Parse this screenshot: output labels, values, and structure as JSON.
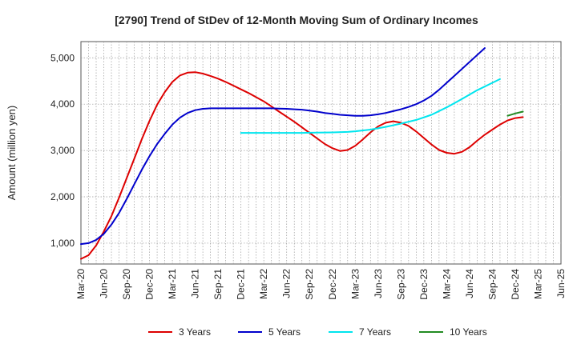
{
  "chart_data": {
    "type": "line",
    "title": "[2790]  Trend of StDev of 12-Month Moving Sum of Ordinary Incomes",
    "xlabel": "",
    "ylabel": "Amount (million yen)",
    "x_ticks": [
      "Mar-20",
      "Jun-20",
      "Sep-20",
      "Dec-20",
      "Mar-21",
      "Jun-21",
      "Sep-21",
      "Dec-21",
      "Mar-22",
      "Jun-22",
      "Sep-22",
      "Dec-22",
      "Mar-23",
      "Jun-23",
      "Sep-23",
      "Dec-23",
      "Mar-24",
      "Jun-24",
      "Sep-24",
      "Dec-24",
      "Mar-25",
      "Jun-25"
    ],
    "y_ticks": [
      1000,
      2000,
      3000,
      4000,
      5000
    ],
    "y_tick_labels": [
      "1,000",
      "2,000",
      "3,000",
      "4,000",
      "5,000"
    ],
    "ylim": [
      550,
      5350
    ],
    "grid": true,
    "legend_position": "bottom",
    "series": [
      {
        "name": "3 Years",
        "color": "#dd0000",
        "points": [
          [
            0,
            660
          ],
          [
            0.333,
            740
          ],
          [
            0.667,
            950
          ],
          [
            1,
            1250
          ],
          [
            1.333,
            1580
          ],
          [
            1.667,
            1980
          ],
          [
            2,
            2400
          ],
          [
            2.333,
            2820
          ],
          [
            2.667,
            3250
          ],
          [
            3,
            3640
          ],
          [
            3.333,
            3990
          ],
          [
            3.667,
            4260
          ],
          [
            4,
            4480
          ],
          [
            4.333,
            4620
          ],
          [
            4.667,
            4680
          ],
          [
            5,
            4690
          ],
          [
            5.333,
            4660
          ],
          [
            5.667,
            4610
          ],
          [
            6,
            4550
          ],
          [
            6.333,
            4480
          ],
          [
            6.667,
            4400
          ],
          [
            7,
            4320
          ],
          [
            7.333,
            4240
          ],
          [
            7.667,
            4150
          ],
          [
            8,
            4060
          ],
          [
            8.333,
            3950
          ],
          [
            8.667,
            3840
          ],
          [
            9,
            3730
          ],
          [
            9.333,
            3620
          ],
          [
            9.667,
            3500
          ],
          [
            10,
            3380
          ],
          [
            10.333,
            3260
          ],
          [
            10.667,
            3140
          ],
          [
            11,
            3050
          ],
          [
            11.333,
            2990
          ],
          [
            11.667,
            3010
          ],
          [
            12,
            3100
          ],
          [
            12.333,
            3240
          ],
          [
            12.667,
            3390
          ],
          [
            13,
            3520
          ],
          [
            13.333,
            3600
          ],
          [
            13.667,
            3630
          ],
          [
            14,
            3600
          ],
          [
            14.333,
            3530
          ],
          [
            14.667,
            3410
          ],
          [
            15,
            3270
          ],
          [
            15.333,
            3130
          ],
          [
            15.667,
            3010
          ],
          [
            16,
            2950
          ],
          [
            16.333,
            2930
          ],
          [
            16.667,
            2970
          ],
          [
            17,
            3070
          ],
          [
            17.333,
            3210
          ],
          [
            17.667,
            3340
          ],
          [
            18,
            3450
          ],
          [
            18.333,
            3560
          ],
          [
            18.667,
            3650
          ],
          [
            19,
            3700
          ],
          [
            19.333,
            3720
          ]
        ]
      },
      {
        "name": "5 Years",
        "color": "#0000cc",
        "points": [
          [
            0,
            980
          ],
          [
            0.333,
            1000
          ],
          [
            0.667,
            1070
          ],
          [
            1,
            1200
          ],
          [
            1.333,
            1400
          ],
          [
            1.667,
            1650
          ],
          [
            2,
            1950
          ],
          [
            2.333,
            2270
          ],
          [
            2.667,
            2590
          ],
          [
            3,
            2880
          ],
          [
            3.333,
            3140
          ],
          [
            3.667,
            3360
          ],
          [
            4,
            3560
          ],
          [
            4.333,
            3710
          ],
          [
            4.667,
            3810
          ],
          [
            5,
            3870
          ],
          [
            5.333,
            3900
          ],
          [
            5.667,
            3910
          ],
          [
            6,
            3910
          ],
          [
            6.333,
            3910
          ],
          [
            6.667,
            3910
          ],
          [
            7,
            3910
          ],
          [
            7.333,
            3910
          ],
          [
            7.667,
            3910
          ],
          [
            8,
            3910
          ],
          [
            8.333,
            3910
          ],
          [
            8.667,
            3905
          ],
          [
            9,
            3900
          ],
          [
            9.333,
            3890
          ],
          [
            9.667,
            3880
          ],
          [
            10,
            3860
          ],
          [
            10.333,
            3840
          ],
          [
            10.667,
            3810
          ],
          [
            11,
            3790
          ],
          [
            11.333,
            3770
          ],
          [
            11.667,
            3760
          ],
          [
            12,
            3750
          ],
          [
            12.333,
            3750
          ],
          [
            12.667,
            3760
          ],
          [
            13,
            3780
          ],
          [
            13.333,
            3810
          ],
          [
            13.667,
            3850
          ],
          [
            14,
            3890
          ],
          [
            14.333,
            3940
          ],
          [
            14.667,
            4000
          ],
          [
            15,
            4080
          ],
          [
            15.333,
            4180
          ],
          [
            15.667,
            4310
          ],
          [
            16,
            4460
          ],
          [
            16.333,
            4610
          ],
          [
            16.667,
            4760
          ],
          [
            17,
            4910
          ],
          [
            17.333,
            5060
          ],
          [
            17.667,
            5210
          ]
        ]
      },
      {
        "name": "7 Years",
        "color": "#00e5ee",
        "points": [
          [
            7,
            3380
          ],
          [
            7.667,
            3380
          ],
          [
            8.333,
            3380
          ],
          [
            9,
            3380
          ],
          [
            9.667,
            3380
          ],
          [
            10.333,
            3385
          ],
          [
            11,
            3390
          ],
          [
            11.667,
            3400
          ],
          [
            12,
            3415
          ],
          [
            12.667,
            3450
          ],
          [
            13.333,
            3510
          ],
          [
            14,
            3580
          ],
          [
            14.667,
            3660
          ],
          [
            15.333,
            3770
          ],
          [
            16,
            3930
          ],
          [
            16.667,
            4110
          ],
          [
            17.333,
            4300
          ],
          [
            18,
            4460
          ],
          [
            18.333,
            4540
          ]
        ]
      },
      {
        "name": "10 Years",
        "color": "#228b22",
        "points": [
          [
            18.667,
            3750
          ],
          [
            19,
            3800
          ],
          [
            19.333,
            3840
          ]
        ]
      }
    ]
  }
}
